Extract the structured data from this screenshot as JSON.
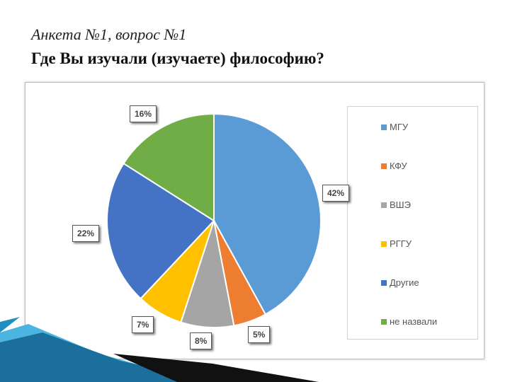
{
  "slide": {
    "subtitle": "Анкета №1, вопрос №1",
    "title": "Где Вы изучали (изучаете) философию?"
  },
  "chart_data": {
    "type": "pie",
    "categories": [
      "МГУ",
      "КФУ",
      "ВШЭ",
      "РГГУ",
      "Другие",
      "не назвали"
    ],
    "values": [
      42,
      5,
      8,
      7,
      22,
      16
    ],
    "labels": [
      "42%",
      "5%",
      "8%",
      "7%",
      "22%",
      "16%"
    ],
    "colors": [
      "#5B9BD5",
      "#ED7D31",
      "#A5A5A5",
      "#FFC000",
      "#4472C4",
      "#70AD47"
    ],
    "legend": "right"
  }
}
